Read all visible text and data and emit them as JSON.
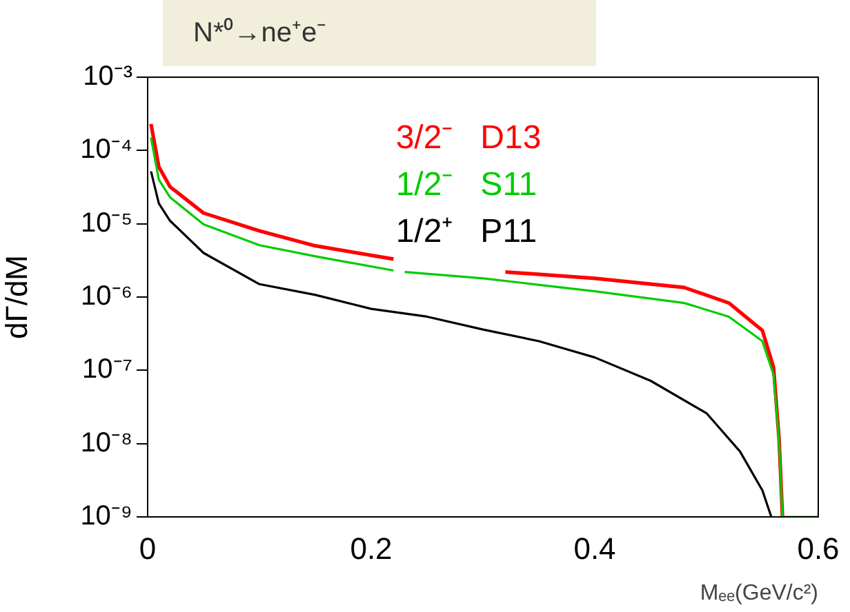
{
  "chart_data": {
    "type": "line",
    "title": "N*⁰→ne⁺e⁻",
    "xlabel": "Mₑₑ(GeV/c²)",
    "ylabel": "dΓ/dM",
    "log": "y",
    "grid": false,
    "legend": "top",
    "marker": "none",
    "line_style": "solid",
    "xlim": [
      0,
      0.6
    ],
    "xticks": [
      0,
      0.2,
      0.4,
      0.6
    ],
    "ylim": [
      1e-09,
      0.001
    ],
    "yticks": [
      {
        "value": 1e-09,
        "label": "10⁻⁹"
      },
      {
        "value": 1e-08,
        "label": "10⁻⁸"
      },
      {
        "value": 1e-07,
        "label": "10⁻⁷"
      },
      {
        "value": 1e-06,
        "label": "10⁻⁶"
      },
      {
        "value": 1e-05,
        "label": "10⁻⁵"
      },
      {
        "value": 0.0001,
        "label": "10⁻⁴"
      },
      {
        "value": 0.001,
        "label": "10⁻³"
      }
    ],
    "series": [
      {
        "name": "3/2⁻   D13",
        "color": "#ff0000",
        "x": [
          0.003,
          0.01,
          0.02,
          0.05,
          0.1,
          0.15,
          0.22,
          0.27,
          0.32,
          0.4,
          0.48,
          0.52,
          0.55,
          0.56,
          0.565,
          0.568
        ],
        "values": [
          0.00023,
          6e-05,
          3.2e-05,
          1.4e-05,
          8e-06,
          5e-06,
          3.3e-06,
          null,
          2.2e-06,
          1.8e-06,
          1.35e-06,
          8.3e-07,
          3.5e-07,
          1.1e-07,
          1.1e-08,
          1e-09
        ]
      },
      {
        "name": "1/2⁻   S11",
        "color": "#00cc00",
        "x": [
          0.003,
          0.01,
          0.02,
          0.05,
          0.1,
          0.15,
          0.22,
          0.225,
          0.23,
          0.3,
          0.4,
          0.48,
          0.52,
          0.55,
          0.56,
          0.565,
          0.568,
          0.6
        ],
        "values": [
          0.00015,
          4e-05,
          2.3e-05,
          9.8e-06,
          5.1e-06,
          3.6e-06,
          2.3e-06,
          null,
          2.2e-06,
          1.8e-06,
          1.2e-06,
          8.3e-07,
          5.4e-07,
          2.5e-07,
          8.7e-08,
          1e-08,
          1e-09,
          1e-09
        ]
      },
      {
        "name": "1/2⁺   P11",
        "color": "#000000",
        "x": [
          0.003,
          0.01,
          0.02,
          0.05,
          0.1,
          0.15,
          0.2,
          0.25,
          0.3,
          0.35,
          0.4,
          0.45,
          0.5,
          0.53,
          0.55,
          0.558
        ],
        "values": [
          5.2e-05,
          1.9e-05,
          1.1e-05,
          4e-06,
          1.5e-06,
          1.07e-06,
          6.9e-07,
          5.4e-07,
          3.6e-07,
          2.5e-07,
          1.5e-07,
          7.2e-08,
          2.6e-08,
          7.8e-09,
          2.3e-09,
          1e-09
        ]
      }
    ]
  }
}
